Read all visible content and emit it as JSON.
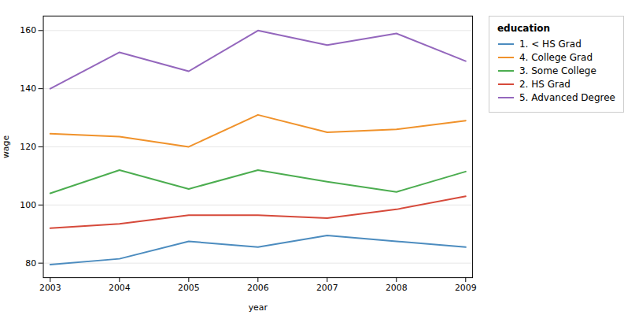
{
  "chart_data": {
    "type": "line",
    "x": [
      2003,
      2004,
      2005,
      2006,
      2007,
      2008,
      2009
    ],
    "series": [
      {
        "name": "1. < HS Grad",
        "color": "#4c8cbf",
        "values": [
          79.5,
          81.5,
          87.5,
          85.5,
          89.5,
          87.5,
          85.5
        ]
      },
      {
        "name": "4. College Grad",
        "color": "#f0922b",
        "values": [
          124.5,
          123.5,
          120.0,
          131.0,
          125.0,
          126.0,
          129.0
        ]
      },
      {
        "name": "3. Some College",
        "color": "#4cad50",
        "values": [
          104.0,
          112.0,
          105.5,
          112.0,
          108.0,
          104.5,
          111.5
        ]
      },
      {
        "name": "2. HS Grad",
        "color": "#d64a3b",
        "values": [
          92.0,
          93.5,
          96.5,
          96.5,
          95.5,
          98.5,
          103.0
        ]
      },
      {
        "name": "5. Advanced Degree",
        "color": "#9467bd",
        "values": [
          140.0,
          152.5,
          146.0,
          160.0,
          155.0,
          159.0,
          149.5
        ]
      }
    ],
    "xlabel": "year",
    "ylabel": "wage",
    "legend_title": "education",
    "xlim": [
      2002.9,
      2009.1
    ],
    "xticks": [
      2003,
      2004,
      2005,
      2006,
      2007,
      2008,
      2009
    ],
    "ylim": [
      75,
      165
    ],
    "yticks": [
      80,
      100,
      120,
      140,
      160
    ],
    "grid": true,
    "legend": "right"
  }
}
